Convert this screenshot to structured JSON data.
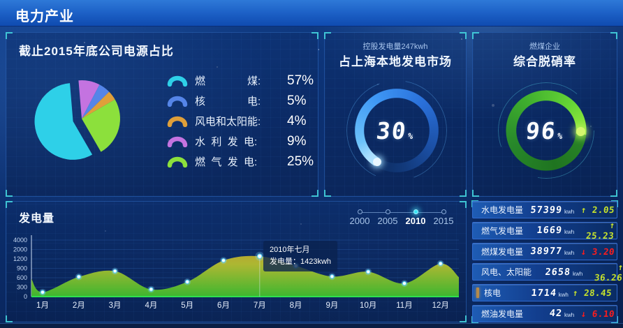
{
  "header": {
    "title": "电力产业"
  },
  "stats": {
    "up_color": "#c6e22c",
    "down_color": "#ff1c1c",
    "rows": [
      {
        "label": "水电发电量",
        "value": "57399",
        "unit": "kwh",
        "change": "2.05",
        "direction": "up",
        "accent": "#2bb3e8"
      },
      {
        "label": "燃气发电量",
        "value": "1669",
        "unit": "kwh",
        "change": "25.23",
        "direction": "up",
        "accent": "#35d435"
      },
      {
        "label": "燃煤发电量",
        "value": "38977",
        "unit": "kwh",
        "change": "3.20",
        "direction": "down",
        "accent": "#3e7ef0"
      },
      {
        "label": "风电、太阳能",
        "value": "2658",
        "unit": "kwh",
        "change": "36.26",
        "direction": "up",
        "accent": "#e8d232"
      },
      {
        "label": "核电",
        "value": "1714",
        "unit": "kwh",
        "change": "28.45",
        "direction": "up",
        "accent": "#b58a4a"
      },
      {
        "label": "燃油发电量",
        "value": "42",
        "unit": "kwh",
        "change": "6.10",
        "direction": "down",
        "accent": "#7668f0"
      }
    ]
  },
  "chart_data": [
    {
      "type": "pie",
      "title": "截止2015年底公司电源占比",
      "start_angle": 150,
      "explode_index": 0,
      "draw_order": [
        0,
        3,
        1,
        2,
        4
      ],
      "slices": [
        {
          "label": "燃煤",
          "label_display": "燃　　　　煤:",
          "value": 57,
          "display": "57%",
          "color": "#2ed0e8"
        },
        {
          "label": "核电",
          "label_display": "核　　　　电:",
          "value": 5,
          "display": "5%",
          "color": "#5585e8"
        },
        {
          "label": "风电和太阳能",
          "label_display": "风电和太阳能:",
          "value": 4,
          "display": "4%",
          "color": "#df9f3a"
        },
        {
          "label": "水利发电",
          "label_display": "水  利  发  电:",
          "value": 9,
          "display": "9%",
          "color": "#c473e0"
        },
        {
          "label": "燃气发电",
          "label_display": "燃  气  发  电:",
          "value": 25,
          "display": "25%",
          "color": "#8ce03c"
        }
      ]
    },
    {
      "type": "gauge",
      "subtitle": "控股发电量247kwh",
      "title": "占上海本地发电市场",
      "value": 30,
      "unit": "%",
      "theme": "blue"
    },
    {
      "type": "gauge",
      "subtitle": "燃煤企业",
      "title": "综合脱硝率",
      "value": 96,
      "unit": "%",
      "theme": "green"
    },
    {
      "type": "area",
      "title": "发电量",
      "categories": [
        "1月",
        "2月",
        "3月",
        "4月",
        "5月",
        "6月",
        "7月",
        "8月",
        "9月",
        "10月",
        "11月",
        "12月"
      ],
      "values": [
        140,
        630,
        810,
        230,
        470,
        1150,
        1423,
        980,
        640,
        790,
        420,
        1050
      ],
      "y_ticks": [
        0,
        300,
        600,
        900,
        1200,
        2000,
        4000
      ],
      "edge_left_value": 560,
      "edge_right_value": 620,
      "highlight_index": 6,
      "tooltip": {
        "line1": "2010年七月",
        "line2": "发电量：1423kwh"
      },
      "years": [
        "2000",
        "2005",
        "2010",
        "2015"
      ],
      "active_year": "2010",
      "baseline_color": "#2fe04e"
    }
  ]
}
